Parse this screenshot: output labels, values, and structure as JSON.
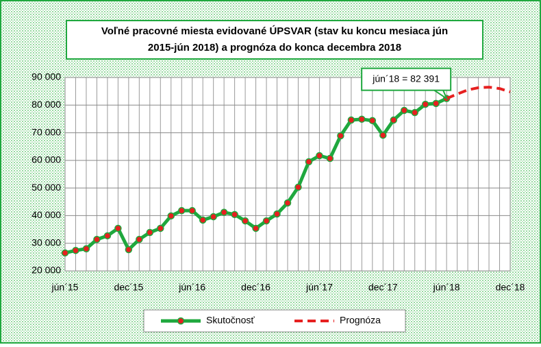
{
  "chart_data": {
    "type": "line",
    "title_lines": [
      "Voľné pracovné miesta evidované ÚPSVAR (stav ku koncu mesiaca jún",
      "2015-jún 2018) a prognóza do konca decembra 2018"
    ],
    "annotation": "jún´18 = 82 391",
    "categories": [
      "jún´15",
      null,
      null,
      null,
      null,
      null,
      "dec´15",
      null,
      null,
      null,
      null,
      null,
      "jún´16",
      null,
      null,
      null,
      null,
      null,
      "dec´16",
      null,
      null,
      null,
      null,
      null,
      "jún´17",
      null,
      null,
      null,
      null,
      null,
      "dec´17",
      null,
      null,
      null,
      null,
      null,
      "jún´18",
      null,
      null,
      null,
      null,
      null,
      "dec´18"
    ],
    "series": [
      {
        "name": "Skutočnosť",
        "color": "#1fa83e",
        "marker_color": "#e62020",
        "values": [
          26500,
          27400,
          28000,
          31400,
          32700,
          35400,
          27700,
          31400,
          33900,
          35400,
          39900,
          41800,
          41800,
          38400,
          39600,
          41200,
          40400,
          38100,
          35400,
          38100,
          40600,
          44600,
          50300,
          59500,
          61700,
          60700,
          68900,
          74600,
          74900,
          74400,
          69100,
          74600,
          78100,
          77300,
          80300,
          80600,
          82391,
          null,
          null,
          null,
          null,
          null,
          null
        ]
      },
      {
        "name": "Prognóza",
        "color": "#e62020",
        "dashed": true,
        "values": [
          null,
          null,
          null,
          null,
          null,
          null,
          null,
          null,
          null,
          null,
          null,
          null,
          null,
          null,
          null,
          null,
          null,
          null,
          null,
          null,
          null,
          null,
          null,
          null,
          null,
          null,
          null,
          null,
          null,
          null,
          null,
          null,
          null,
          null,
          null,
          null,
          82391,
          84000,
          85500,
          86300,
          86500,
          86000,
          84800
        ]
      }
    ],
    "ylim": [
      20000,
      90000
    ],
    "yticks": [
      {
        "value": 20000,
        "label": "20 000"
      },
      {
        "value": 30000,
        "label": "30 000"
      },
      {
        "value": 40000,
        "label": "40 000"
      },
      {
        "value": 50000,
        "label": "50 000"
      },
      {
        "value": 60000,
        "label": "60 000"
      },
      {
        "value": 70000,
        "label": "70 000"
      },
      {
        "value": 80000,
        "label": "80 000"
      },
      {
        "value": 90000,
        "label": "90 000"
      }
    ],
    "grid": true
  }
}
